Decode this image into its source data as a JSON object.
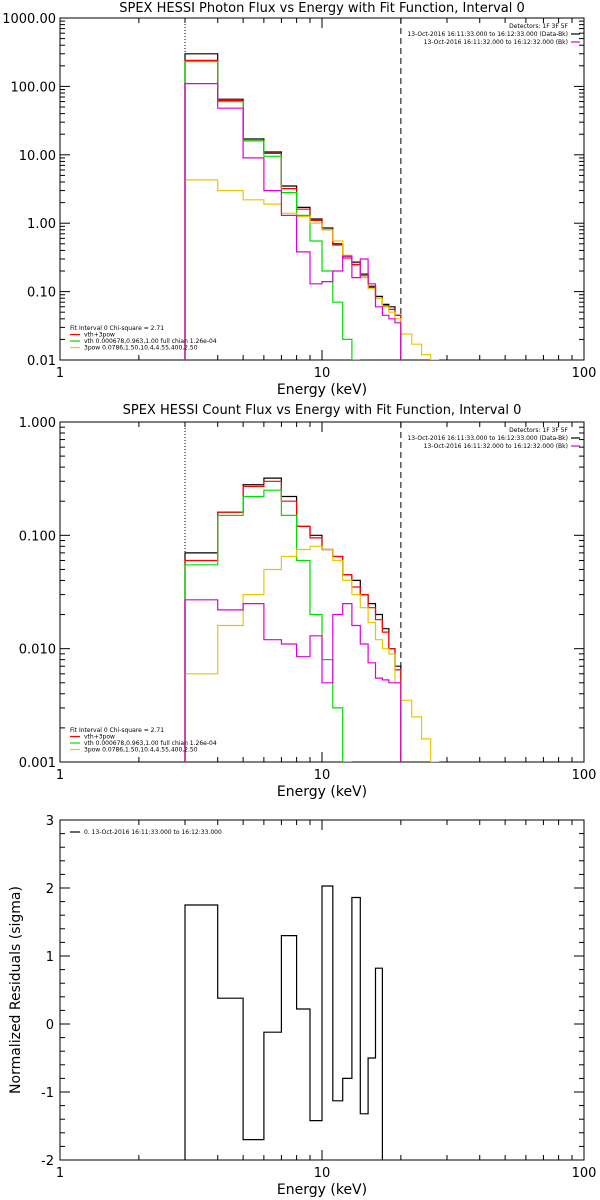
{
  "chart_data": [
    {
      "type": "line",
      "title": "SPEX HESSI Photon Flux vs Energy with Fit Function, Interval 0",
      "xlabel": "Energy (keV)",
      "ylabel": "",
      "xscale": "log",
      "yscale": "log",
      "xlim": [
        1,
        100
      ],
      "ylim": [
        0.01,
        1000
      ],
      "xticks": [
        "1",
        "10",
        "100"
      ],
      "yticks": [
        "1000.00",
        "100.00",
        "10.00",
        "1.00",
        "0.10",
        "0.01"
      ],
      "vlines": [
        {
          "x": 3.0,
          "style": "dotted"
        },
        {
          "x": 20.0,
          "style": "dashed"
        }
      ],
      "bin_edges": [
        3,
        4,
        5,
        6,
        7,
        8,
        9,
        10,
        11,
        12,
        13,
        14,
        15,
        16,
        17,
        18,
        19,
        20,
        22,
        24,
        26,
        28
      ],
      "series": [
        {
          "name": "",
          "color": "#000000",
          "values": [
            300,
            65,
            17,
            11,
            3.5,
            1.7,
            1.15,
            0.85,
            0.5,
            0.33,
            0.27,
            0.18,
            0.12,
            0.085,
            0.065,
            0.06,
            0.045,
            null,
            null,
            null,
            null
          ]
        },
        {
          "name": "vth+3pow",
          "color": "#ff0000",
          "values": [
            240,
            62,
            16,
            10.5,
            3.2,
            1.6,
            1.1,
            0.8,
            0.48,
            0.31,
            0.25,
            0.17,
            0.115,
            0.08,
            0.062,
            0.055,
            0.045,
            null,
            null,
            null,
            null
          ]
        },
        {
          "name": "vth 0.000678,0.963,1.00  full chian 1.26e-04",
          "color": "#00dd00",
          "values": [
            230,
            60,
            16,
            9.5,
            2.8,
            1.3,
            0.55,
            0.2,
            0.07,
            0.02,
            0.01,
            null,
            null,
            null,
            null,
            null,
            null,
            null,
            null,
            null,
            null
          ]
        },
        {
          "name": "3pow 0.0786,1.50,10.4,4.55,400,2.50",
          "color": "#e6c800",
          "values": [
            4.3,
            3.0,
            2.2,
            1.9,
            1.4,
            1.25,
            1.0,
            0.8,
            0.55,
            0.34,
            0.24,
            0.16,
            0.11,
            0.08,
            0.06,
            0.05,
            0.04,
            0.024,
            0.017,
            0.012,
            0.01
          ]
        },
        {
          "name": "",
          "color": "#dd00dd",
          "values": [
            110,
            48,
            9,
            3.0,
            1.3,
            0.38,
            0.13,
            0.14,
            0.2,
            0.33,
            0.16,
            0.3,
            0.13,
            0.06,
            0.045,
            0.04,
            0.035,
            null,
            null,
            null,
            null
          ]
        }
      ],
      "legend": {
        "position": "top-right",
        "header": "Detectors: 1F 3F 5F",
        "entries": [
          {
            "text": "13-Oct-2016 16:11:33.000 to 16:12:33.000 (Data-Bk)",
            "color": "#000000"
          },
          {
            "text": "13-Oct-2016 16:11:32.000 to 16:12:32.000 (Bk)",
            "color": "#dd00dd"
          }
        ]
      },
      "fit_legend": {
        "position": "bottom-left",
        "header": "Fit Interval 0   Chi-square = 2.71",
        "entries": [
          {
            "text": "vth+3pow",
            "color": "#ff0000"
          },
          {
            "text": "vth 0.000678,0.963,1.00  full chian 1.26e-04",
            "color": "#00dd00"
          },
          {
            "text": "3pow 0.0786,1.50,10.4,4.55,400,2.50",
            "color": "#e6c800"
          }
        ]
      }
    },
    {
      "type": "line",
      "title": "SPEX HESSI Count Flux vs Energy with Fit Function, Interval 0",
      "xlabel": "Energy (keV)",
      "ylabel": "",
      "xscale": "log",
      "yscale": "log",
      "xlim": [
        1,
        100
      ],
      "ylim": [
        0.001,
        1
      ],
      "xticks": [
        "1",
        "10",
        "100"
      ],
      "yticks": [
        "1.000",
        "0.100",
        "0.010",
        "0.001"
      ],
      "vlines": [
        {
          "x": 3.0,
          "style": "dotted"
        },
        {
          "x": 20.0,
          "style": "dashed"
        }
      ],
      "bin_edges": [
        3,
        4,
        5,
        6,
        7,
        8,
        9,
        10,
        11,
        12,
        13,
        14,
        15,
        16,
        17,
        18,
        19,
        20,
        22,
        24,
        26,
        28
      ],
      "series": [
        {
          "name": "",
          "color": "#000000",
          "values": [
            0.07,
            0.16,
            0.28,
            0.32,
            0.22,
            0.12,
            0.1,
            0.075,
            0.065,
            0.045,
            0.04,
            0.03,
            0.025,
            0.02,
            0.015,
            0.01,
            0.007,
            null,
            null,
            null,
            null
          ]
        },
        {
          "name": "vth+3pow",
          "color": "#ff0000",
          "values": [
            0.06,
            0.16,
            0.27,
            0.3,
            0.2,
            0.12,
            0.095,
            0.075,
            0.065,
            0.045,
            0.035,
            0.03,
            0.023,
            0.018,
            0.014,
            0.01,
            0.0065,
            null,
            null,
            null,
            null
          ]
        },
        {
          "name": "vth 0.000678,0.963,1.00  full chian 1.26e-04",
          "color": "#00dd00",
          "values": [
            0.055,
            0.15,
            0.22,
            0.25,
            0.15,
            0.06,
            0.02,
            0.008,
            0.003,
            0.001,
            null,
            null,
            null,
            null,
            null,
            null,
            null,
            null,
            null,
            null,
            null
          ]
        },
        {
          "name": "3pow 0.0786,1.50,10.4,4.55,400,2.50",
          "color": "#e6c800",
          "values": [
            0.006,
            0.016,
            0.03,
            0.05,
            0.065,
            0.075,
            0.08,
            0.075,
            0.06,
            0.04,
            0.03,
            0.023,
            0.017,
            0.012,
            0.01,
            0.009,
            0.005,
            0.0035,
            0.0025,
            0.0016,
            0.001
          ]
        },
        {
          "name": "",
          "color": "#dd00dd",
          "values": [
            0.027,
            0.022,
            0.025,
            0.012,
            0.011,
            0.0085,
            0.013,
            0.005,
            0.02,
            0.025,
            0.016,
            0.011,
            0.0075,
            0.0055,
            0.0053,
            0.005,
            0.005,
            null,
            null,
            null,
            null
          ]
        }
      ],
      "legend": {
        "position": "top-right",
        "header": "Detectors: 1F 3F 5F",
        "entries": [
          {
            "text": "13-Oct-2016 16:11:33.000 to 16:12:33.000 (Data-Bk)",
            "color": "#000000"
          },
          {
            "text": "13-Oct-2016 16:11:32.000 to 16:12:32.000 (Bk)",
            "color": "#dd00dd"
          }
        ]
      },
      "fit_legend": {
        "position": "bottom-left",
        "header": "Fit Interval 0   Chi-square = 2.71",
        "entries": [
          {
            "text": "vth+3pow",
            "color": "#ff0000"
          },
          {
            "text": "vth 0.000678,0.963,1.00  full chian 1.26e-04",
            "color": "#00dd00"
          },
          {
            "text": "3pow 0.0786,1.50,10.4,4.55,400,2.50",
            "color": "#e6c800"
          }
        ]
      }
    },
    {
      "type": "line",
      "title": "",
      "xlabel": "Energy (keV)",
      "ylabel": "Normalized Residuals (sigma)",
      "xscale": "log",
      "yscale": "linear",
      "xlim": [
        1,
        100
      ],
      "ylim": [
        -2,
        3
      ],
      "xticks": [
        "1",
        "10",
        "100"
      ],
      "yticks": [
        "3",
        "2",
        "1",
        "0",
        "-1",
        "-2"
      ],
      "vlines": [],
      "bin_edges": [
        3,
        4,
        5,
        6,
        7,
        8,
        9,
        10,
        11,
        12,
        13,
        14,
        15,
        16,
        17,
        18,
        19,
        20
      ],
      "series": [
        {
          "name": "0. 13-Oct-2016 16:11:33.000 to 16:12:33.000",
          "color": "#000000",
          "values": [
            1.75,
            0.38,
            -1.7,
            -0.12,
            1.3,
            0.22,
            -1.42,
            2.03,
            -1.13,
            -0.8,
            1.86,
            -1.32,
            -0.5,
            0.82,
            null,
            null,
            null
          ]
        }
      ],
      "legend": {
        "position": "top-left",
        "header": "",
        "entries": [
          {
            "text": "0. 13-Oct-2016 16:11:33.000 to 16:12:33.000",
            "color": "#000000"
          }
        ]
      },
      "fit_legend": null
    }
  ]
}
